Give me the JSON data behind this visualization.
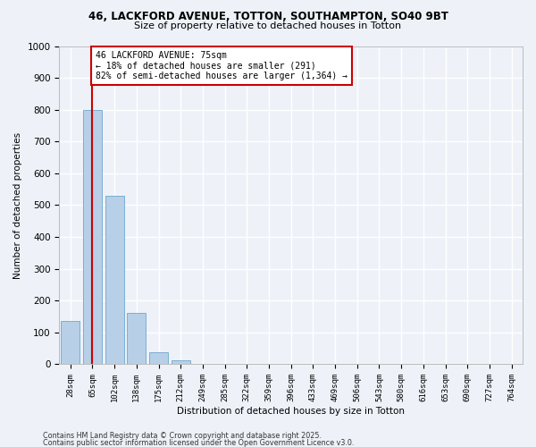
{
  "title1": "46, LACKFORD AVENUE, TOTTON, SOUTHAMPTON, SO40 9BT",
  "title2": "Size of property relative to detached houses in Totton",
  "xlabel": "Distribution of detached houses by size in Totton",
  "ylabel": "Number of detached properties",
  "categories": [
    "28sqm",
    "65sqm",
    "102sqm",
    "138sqm",
    "175sqm",
    "212sqm",
    "249sqm",
    "285sqm",
    "322sqm",
    "359sqm",
    "396sqm",
    "433sqm",
    "469sqm",
    "506sqm",
    "543sqm",
    "580sqm",
    "616sqm",
    "653sqm",
    "690sqm",
    "727sqm",
    "764sqm"
  ],
  "values": [
    135,
    800,
    530,
    162,
    38,
    12,
    0,
    0,
    0,
    0,
    0,
    0,
    0,
    0,
    0,
    0,
    0,
    0,
    0,
    0,
    0
  ],
  "bar_color": "#b8cfe8",
  "bar_edge_color": "#7aafd4",
  "vline_x": 1.0,
  "vline_color": "#cc0000",
  "annotation_text": "46 LACKFORD AVENUE: 75sqm\n← 18% of detached houses are smaller (291)\n82% of semi-detached houses are larger (1,364) →",
  "annotation_box_color": "#ffffff",
  "annotation_box_edge": "#cc0000",
  "ylim": [
    0,
    1000
  ],
  "yticks": [
    0,
    100,
    200,
    300,
    400,
    500,
    600,
    700,
    800,
    900,
    1000
  ],
  "background_color": "#eef2f8",
  "grid_color": "#ffffff",
  "footer1": "Contains HM Land Registry data © Crown copyright and database right 2025.",
  "footer2": "Contains public sector information licensed under the Open Government Licence v3.0."
}
